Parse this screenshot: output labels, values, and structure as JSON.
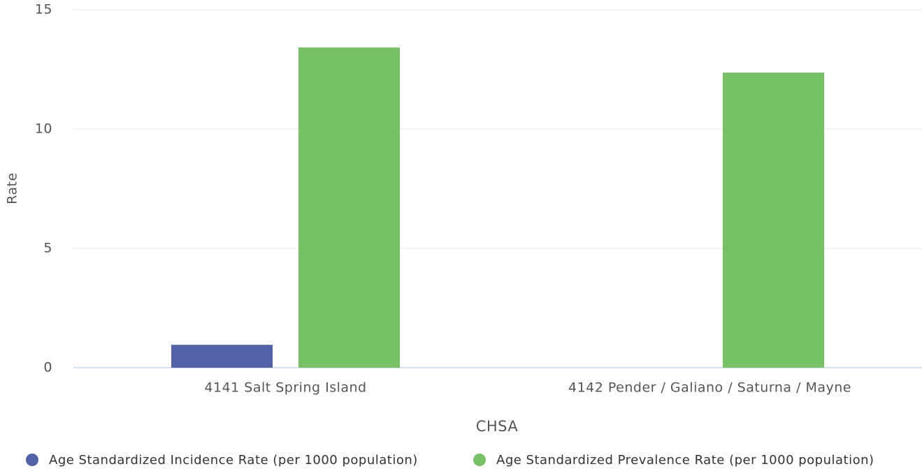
{
  "chart_data": {
    "type": "bar",
    "categories": [
      "4141 Salt Spring Island",
      "4142 Pender / Galiano / Saturna / Mayne"
    ],
    "series": [
      {
        "name": "Age Standardized Incidence Rate (per 1000 population)",
        "color": "#5262a8",
        "values": [
          0.96,
          null
        ]
      },
      {
        "name": "Age Standardized Prevalence Rate (per 1000 population)",
        "color": "#75c163",
        "values": [
          13.42,
          12.37
        ]
      }
    ],
    "y_label": "Rate",
    "x_label": "CHSA",
    "ylim": [
      0,
      15
    ],
    "yticks": [
      0,
      5,
      10,
      15
    ],
    "grid": true,
    "legend": "bottom"
  }
}
